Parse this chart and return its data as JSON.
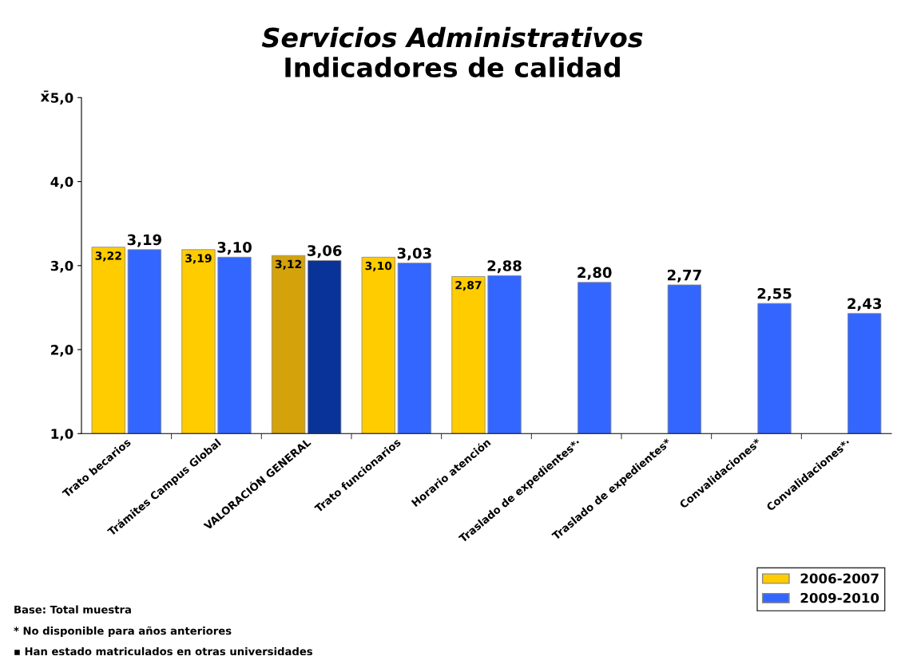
{
  "chart_data": {
    "type": "bar",
    "title": "Servicios Administrativos",
    "subtitle": "Indicadores de calidad",
    "ylabel": "x̄",
    "categories": [
      "Trato becarios",
      "Trámites Campus Global",
      "VALORACIÓN GENERAL",
      "Trato funcionarios",
      "Horario atención",
      "Traslado de expedientes*·",
      "Traslado de expedientes*",
      "Convalidaciones*",
      "Convalidaciones*·"
    ],
    "series": [
      {
        "name": "2006-2007",
        "color": "#ffcc00",
        "colors": [
          "#ffcc00",
          "#ffcc00",
          "#d4a20a",
          "#ffcc00",
          "#ffcc00",
          "#ffcc00",
          "#ffcc00",
          "#ffcc00",
          "#ffcc00"
        ],
        "values": [
          3.22,
          3.19,
          3.12,
          3.1,
          2.87,
          null,
          null,
          null,
          null
        ],
        "value_labels": [
          "3,22",
          "3,19",
          "3,12",
          "3,10",
          "2,87",
          null,
          null,
          null,
          null
        ]
      },
      {
        "name": "2009-2010",
        "color": "#3366ff",
        "colors": [
          "#3366ff",
          "#3366ff",
          "#0a3399",
          "#3366ff",
          "#3366ff",
          "#3366ff",
          "#3366ff",
          "#3366ff",
          "#3366ff"
        ],
        "values": [
          3.19,
          3.1,
          3.06,
          3.03,
          2.88,
          2.8,
          2.77,
          2.55,
          2.43
        ],
        "value_labels": [
          "3,19",
          "3,10",
          "3,06",
          "3,03",
          "2,88",
          "2,80",
          "2,77",
          "2,55",
          "2,43"
        ]
      }
    ],
    "ylim": [
      1,
      5
    ],
    "yticks": [
      {
        "value": 1,
        "label": "1,0"
      },
      {
        "value": 2,
        "label": "2,0"
      },
      {
        "value": 3,
        "label": "3,0"
      },
      {
        "value": 4,
        "label": "4,0"
      },
      {
        "value": 5,
        "label": "5,0"
      }
    ],
    "grid": false,
    "legend": "bottom right",
    "annotations": [
      "Base: Total muestra",
      "* No disponible para años anteriores",
      "▪ Han estado matriculados en otras universidades"
    ]
  }
}
